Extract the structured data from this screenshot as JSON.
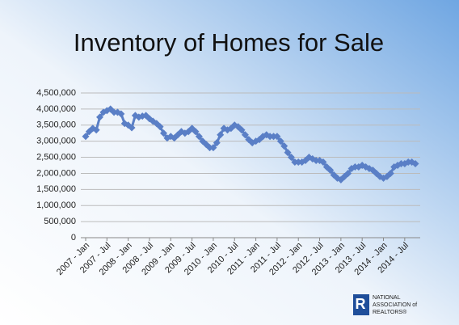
{
  "chart_data": {
    "type": "line",
    "title": "Inventory of Homes for Sale",
    "categories": [
      "2007 - Jan",
      null,
      null,
      null,
      null,
      null,
      "2007 - Jul",
      null,
      null,
      null,
      null,
      null,
      "2008 - Jan",
      null,
      null,
      null,
      null,
      null,
      "2008 - Jul",
      null,
      null,
      null,
      null,
      null,
      "2009 - Jan",
      null,
      null,
      null,
      null,
      null,
      "2009 - Jul",
      null,
      null,
      null,
      null,
      null,
      "2010 - Jan",
      null,
      null,
      null,
      null,
      null,
      "2010 - Jul",
      null,
      null,
      null,
      null,
      null,
      "2011 - Jan",
      null,
      null,
      null,
      null,
      null,
      "2011 - Jul",
      null,
      null,
      null,
      null,
      null,
      "2012 - Jan",
      null,
      null,
      null,
      null,
      null,
      "2012 - Jul",
      null,
      null,
      null,
      null,
      null,
      "2013 - Jan",
      null,
      null,
      null,
      null,
      null,
      "2013 - Jul",
      null,
      null,
      null,
      null,
      null,
      "2014 - Jan",
      null,
      null,
      null,
      null,
      null,
      "2014 - Jul",
      null,
      null,
      null
    ],
    "series": [
      {
        "color": "#5a7fc6",
        "values": [
          3150000,
          3300000,
          3400000,
          3350000,
          3750000,
          3900000,
          3950000,
          4000000,
          3900000,
          3900000,
          3850000,
          3550000,
          3500000,
          3420000,
          3800000,
          3750000,
          3780000,
          3800000,
          3700000,
          3620000,
          3550000,
          3450000,
          3250000,
          3100000,
          3150000,
          3100000,
          3200000,
          3300000,
          3250000,
          3300000,
          3400000,
          3300000,
          3150000,
          3000000,
          2900000,
          2800000,
          2800000,
          2950000,
          3200000,
          3400000,
          3350000,
          3400000,
          3500000,
          3450000,
          3350000,
          3200000,
          3050000,
          2950000,
          3000000,
          3050000,
          3150000,
          3200000,
          3150000,
          3150000,
          3150000,
          3000000,
          2850000,
          2650000,
          2500000,
          2350000,
          2350000,
          2350000,
          2400000,
          2500000,
          2450000,
          2400000,
          2400000,
          2350000,
          2200000,
          2100000,
          1950000,
          1850000,
          1800000,
          1900000,
          2000000,
          2150000,
          2200000,
          2200000,
          2250000,
          2200000,
          2150000,
          2100000,
          2000000,
          1900000,
          1850000,
          1900000,
          2000000,
          2200000,
          2250000,
          2300000,
          2300000,
          2350000,
          2350000,
          2300000
        ]
      }
    ],
    "ylim": [
      0,
      4500000
    ],
    "yticks": [
      0,
      {
        "value": 500000,
        "label": "500,000"
      },
      {
        "value": 1000000,
        "label": "1,000,000"
      },
      {
        "value": 1500000,
        "label": "1,500,000"
      },
      {
        "value": 2000000,
        "label": "2,000,000"
      },
      {
        "value": 2500000,
        "label": "2,500,000"
      },
      {
        "value": 3000000,
        "label": "3,000,000"
      },
      {
        "value": 3500000,
        "label": "3,500,000"
      },
      {
        "value": 4000000,
        "label": "4,000,000"
      },
      {
        "value": 4500000,
        "label": "4,500,000"
      }
    ],
    "grid": true,
    "annotations": [
      "NATIONAL",
      "ASSOCIATION of",
      "REALTORS®"
    ]
  }
}
